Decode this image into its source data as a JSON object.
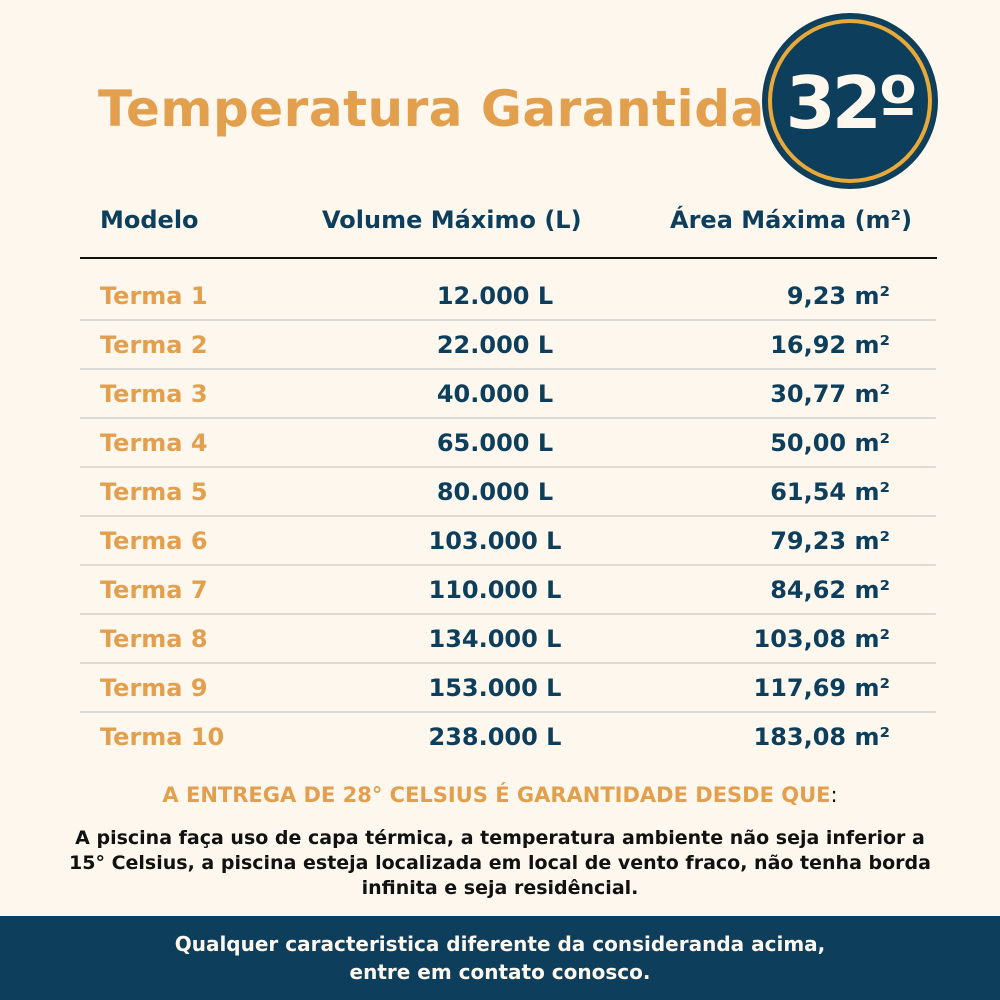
{
  "title": "Temperatura Garantida",
  "badge": "32º",
  "colors": {
    "background": "#fdf7ee",
    "accent": "#e2a04f",
    "navy": "#0d3f5c",
    "ring": "#e8a93a"
  },
  "table": {
    "headers": [
      "Modelo",
      "Volume Máximo (L)",
      "Área Máxima (m²)"
    ],
    "rows": [
      [
        "Terma 1",
        "12.000 L",
        "9,23 m²"
      ],
      [
        "Terma 2",
        "22.000 L",
        "16,92 m²"
      ],
      [
        "Terma 3",
        "40.000 L",
        "30,77 m²"
      ],
      [
        "Terma 4",
        "65.000 L",
        "50,00 m²"
      ],
      [
        "Terma 5",
        "80.000 L",
        "61,54 m²"
      ],
      [
        "Terma 6",
        "103.000 L",
        "79,23 m²"
      ],
      [
        "Terma 7",
        "110.000 L",
        "84,62 m²"
      ],
      [
        "Terma 8",
        "134.000 L",
        "103,08 m²"
      ],
      [
        "Terma 9",
        "153.000 L",
        "117,69 m²"
      ],
      [
        "Terma 10",
        "238.000 L",
        "183,08 m²"
      ]
    ]
  },
  "condition_heading": "A ENTREGA DE 28° CELSIUS É GARANTIDADE DESDE QUE",
  "condition_colon": ":",
  "condition_text": "A piscina faça uso de capa térmica, a temperatura ambiente não seja inferior a 15° Celsius, a piscina esteja localizada em local de vento fraco, não tenha borda infinita e seja residêncial.",
  "footer": {
    "line1": "Qualquer caracteristica diferente da consideranda acima,",
    "line2": "entre em contato conosco."
  }
}
